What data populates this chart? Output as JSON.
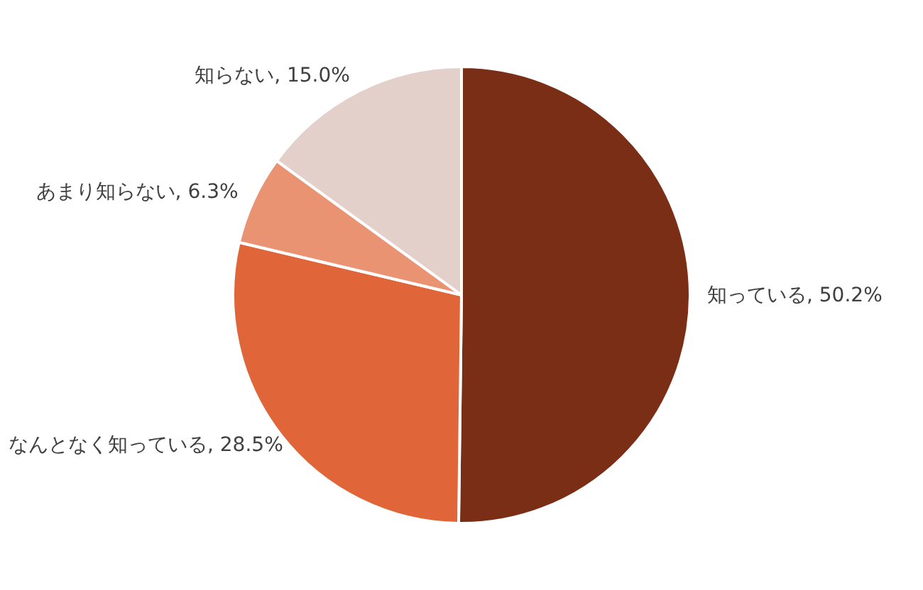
{
  "chart_data": {
    "type": "pie",
    "categories": [
      "知っている",
      "なんとなく知っている",
      "あまり知らない",
      "知らない"
    ],
    "values": [
      50.2,
      28.5,
      6.3,
      15.0
    ],
    "value_labels": [
      "50.2%",
      "28.5%",
      "6.3%",
      "15.0%"
    ],
    "colors": [
      "#7b2e16",
      "#e0663a",
      "#e99373",
      "#e4d0ca"
    ],
    "legend": false
  }
}
